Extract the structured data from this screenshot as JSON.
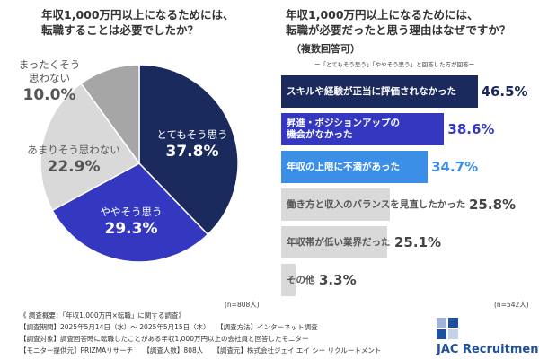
{
  "chart_data": [
    {
      "type": "pie",
      "title": "年収1,000万円以上になるためには、\n転職することは必要でしたか？",
      "categories": [
        "とてもそう思う",
        "ややそう思う",
        "あまりそう思わない",
        "まったくそう\n思わない"
      ],
      "values": [
        37.8,
        29.3,
        22.9,
        10.0
      ],
      "value_labels": [
        "37.8%",
        "29.3%",
        "22.9%",
        "10.0%"
      ],
      "colors": [
        "#1b2a5c",
        "#3438c0",
        "#d9d9d9",
        "#a6a6a6"
      ],
      "note": "(n=808人)"
    },
    {
      "type": "bar",
      "orientation": "horizontal",
      "title": "年収1,000万円以上になるためには、\n転職が必要だったと思う理由はなぜですか？",
      "subtitle": "（複数回答可）",
      "annotation": "ー「とてもそう思う」「ややそう思う」と回答した方が回答ー",
      "categories": [
        "スキルや経験が正当に評価されなかった",
        "昇進・ポジションアップの\n機会がなかった",
        "年収の上限に不満があった",
        "働き方と収入のバランスを見直したかった",
        "年収帯が低い業界だった",
        "その他"
      ],
      "values": [
        46.5,
        38.6,
        34.7,
        25.8,
        25.1,
        3.3
      ],
      "value_labels": [
        "46.5%",
        "38.6%",
        "34.7%",
        "25.8%",
        "25.1%",
        "3.3%"
      ],
      "colors": [
        "#1b2a5c",
        "#3438c0",
        "#3b8fe6",
        "#d9d9d9",
        "#d9d9d9",
        "#d9d9d9"
      ],
      "note": "(n=542人)"
    }
  ],
  "survey_notes": [
    "《 調査概要：「年収1,000万円×転職」に関する調査》",
    "【調査期間】2025年5月14日（水）～ 2025年5月15日（木）　　【調査方法】インターネット調査",
    "【調査対象】調査回答時に転職したことがある年収1,000万円以上の会社員と回答したモニター",
    "【モニター提供元】PRIZMAリサーチ　　【調査人数】808人　　【調査元】株式会社ジェイ エイ シー リクルートメント"
  ],
  "logo": "JAC Recruitment"
}
